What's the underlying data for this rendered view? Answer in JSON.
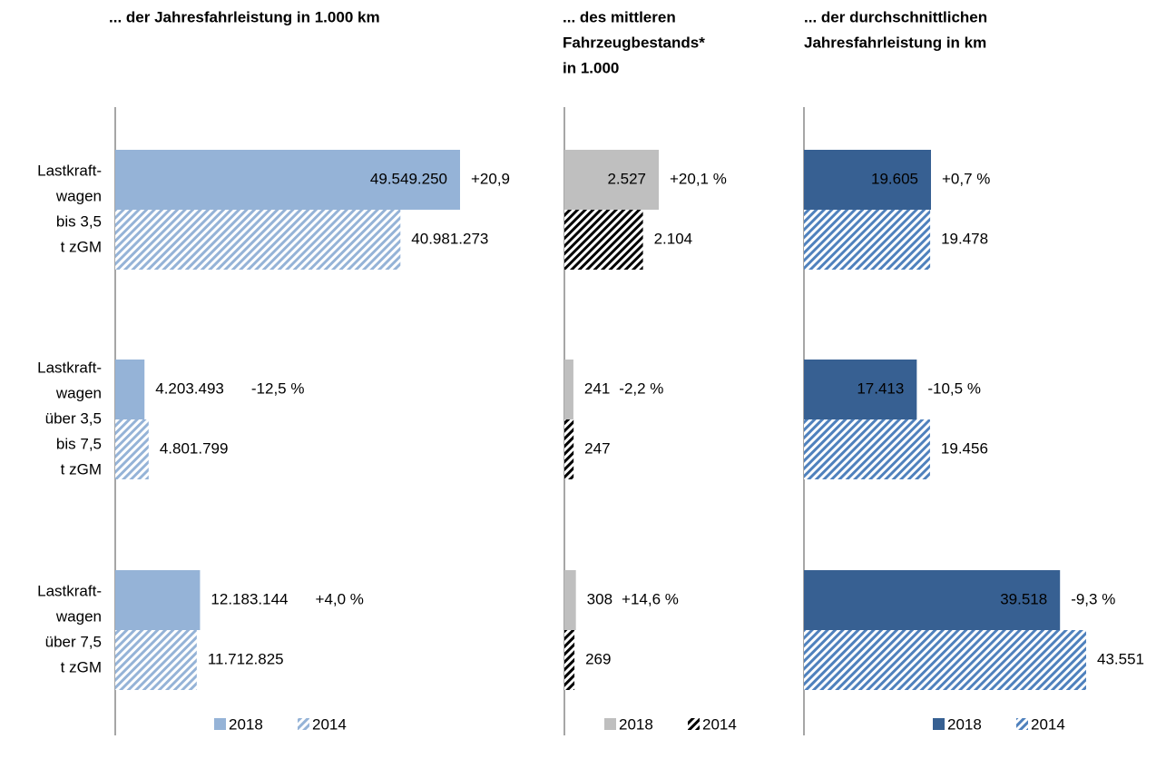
{
  "chart_data": [
    {
      "type": "bar",
      "orientation": "horizontal",
      "title": [
        "... der  Jahresfahrleistung in 1.000 km"
      ],
      "categories": [
        [
          "Lastkraft-",
          "wagen",
          "bis 3,5",
          "t zGM"
        ],
        [
          "Lastkraft-",
          "wagen",
          "über 3,5",
          "bis 7,5",
          "t zGM"
        ],
        [
          "Lastkraft-",
          "wagen",
          "über 7,5",
          "t zGM"
        ]
      ],
      "series": [
        {
          "name": "2018",
          "color": "#95b3d7",
          "pattern": "solid",
          "values": [
            49549250,
            4203493,
            12183144
          ],
          "value_labels": [
            "49.549.250",
            "4.203.493",
            "12.183.144"
          ]
        },
        {
          "name": "2014",
          "color": "#95b3d7",
          "pattern": "hatch",
          "values": [
            40981273,
            4801799,
            11712825
          ],
          "value_labels": [
            "40.981.273",
            "4.801.799",
            "11.712.825"
          ]
        }
      ],
      "annotations": [
        "+20,9",
        "-12,5 %",
        "+4,0 %"
      ]
    },
    {
      "type": "bar",
      "orientation": "horizontal",
      "title": [
        "... des mittleren",
        "Fahrzeugbestands*",
        "in 1.000"
      ],
      "series": [
        {
          "name": "2018",
          "color": "#bfbfbf",
          "pattern": "solid",
          "values": [
            2527,
            241,
            308
          ],
          "value_labels": [
            "2.527",
            "241",
            "308"
          ]
        },
        {
          "name": "2014",
          "color": "#000000",
          "pattern": "hatch",
          "values": [
            2104,
            247,
            269
          ],
          "value_labels": [
            "2.104",
            "247",
            "269"
          ]
        }
      ],
      "annotations": [
        "+20,1 %",
        "-2,2 %",
        "+14,6 %"
      ]
    },
    {
      "type": "bar",
      "orientation": "horizontal",
      "title": [
        "... der durchschnittlichen",
        "Jahresfahrleistung in km"
      ],
      "series": [
        {
          "name": "2018",
          "color": "#376092",
          "pattern": "solid",
          "values": [
            19605,
            17413,
            39518
          ],
          "value_labels": [
            "19.605",
            "17.413",
            "39.518"
          ]
        },
        {
          "name": "2014",
          "color": "#4f81bd",
          "pattern": "hatch",
          "values": [
            19478,
            19456,
            43551
          ],
          "value_labels": [
            "19.478",
            "19.456",
            "43.551"
          ]
        }
      ],
      "annotations": [
        "+0,7 %",
        "-10,5 %",
        "-9,3 %"
      ]
    }
  ]
}
